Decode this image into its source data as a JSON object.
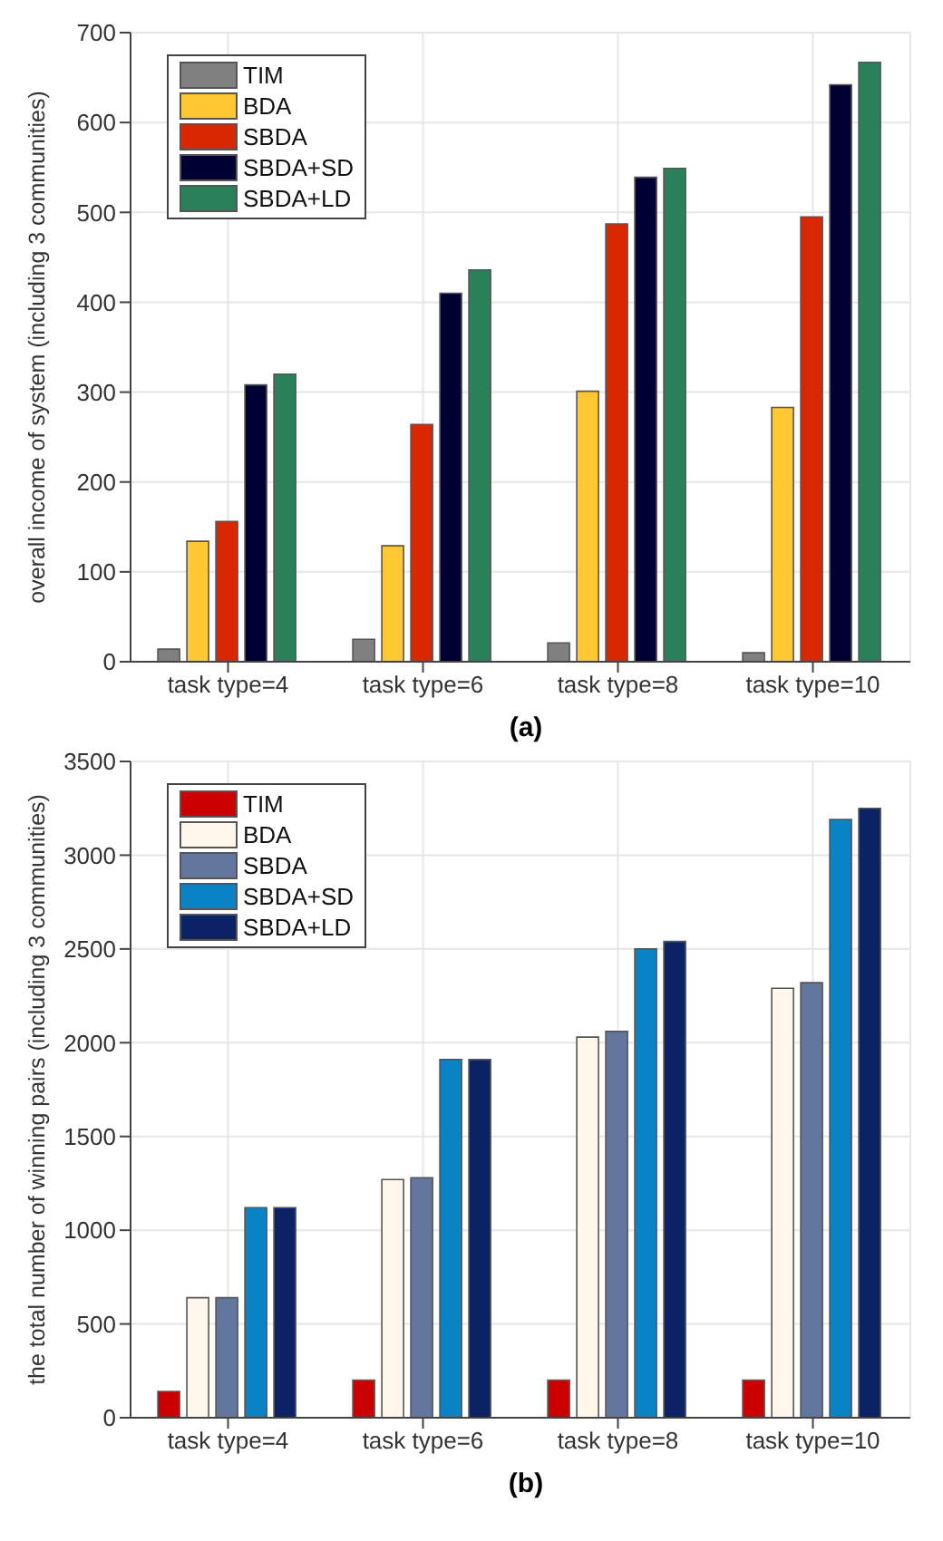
{
  "chart_data": [
    {
      "type": "bar",
      "ylabel": "overall income of system (including 3 communities)",
      "categories": [
        "task type=4",
        "task type=6",
        "task type=8",
        "task type=10"
      ],
      "series": [
        {
          "name": "TIM",
          "color": "#808080",
          "values": [
            14,
            25,
            21,
            10
          ]
        },
        {
          "name": "BDA",
          "color": "#ffc832",
          "values": [
            134,
            129,
            301,
            283
          ]
        },
        {
          "name": "SBDA",
          "color": "#d92800",
          "values": [
            156,
            264,
            487,
            495
          ]
        },
        {
          "name": "SBDA+SD",
          "color": "#000033",
          "values": [
            308,
            410,
            539,
            642
          ]
        },
        {
          "name": "SBDA+LD",
          "color": "#2a8059",
          "values": [
            320,
            436,
            549,
            667
          ]
        }
      ],
      "ylim": [
        0,
        700
      ],
      "yticks": [
        0,
        100,
        200,
        300,
        400,
        500,
        600,
        700
      ],
      "grid": true,
      "legend": "top left",
      "annotations": [
        "(a)"
      ]
    },
    {
      "type": "bar",
      "ylabel": "the total number of winning pairs (including 3 communities)",
      "categories": [
        "task type=4",
        "task type=6",
        "task type=8",
        "task type=10"
      ],
      "series": [
        {
          "name": "TIM",
          "color": "#cc0000",
          "values": [
            140,
            200,
            200,
            200
          ]
        },
        {
          "name": "BDA",
          "color": "#fff7ec",
          "values": [
            640,
            1270,
            2030,
            2290
          ]
        },
        {
          "name": "SBDA",
          "color": "#63779e",
          "values": [
            640,
            1280,
            2060,
            2320
          ]
        },
        {
          "name": "SBDA+SD",
          "color": "#0a82c6",
          "values": [
            1120,
            1910,
            2500,
            3190
          ]
        },
        {
          "name": "SBDA+LD",
          "color": "#0b2364",
          "values": [
            1120,
            1910,
            2540,
            3250
          ]
        }
      ],
      "ylim": [
        0,
        3500
      ],
      "yticks": [
        0,
        500,
        1000,
        1500,
        2000,
        2500,
        3000,
        3500
      ],
      "grid": true,
      "legend": "top left",
      "annotations": [
        "(b)"
      ]
    }
  ]
}
